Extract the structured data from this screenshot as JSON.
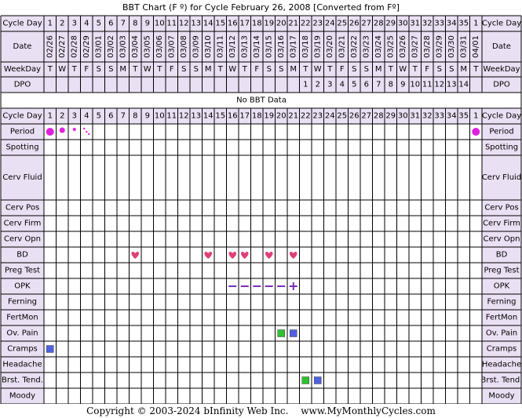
{
  "title": "BBT Chart (F º) for Cycle February 26, 2008  [Converted from Fº]",
  "no_bbt_text": "No BBT Data",
  "footer": {
    "copyright": "Copyright © 2003-2024 bInfinity Web Inc.",
    "site": "www.MyMonthlyCycles.com"
  },
  "colors": {
    "header_bg": "#EAE0F4",
    "grid_line": "#000000",
    "period": "#E020E0",
    "heart": "#E0407A",
    "opk_dash": "#7A2EB8",
    "green_marker": "#30C030",
    "blue_marker": "#5060E0"
  },
  "cycle_days": [
    "1",
    "2",
    "3",
    "4",
    "5",
    "6",
    "7",
    "8",
    "9",
    "10",
    "11",
    "12",
    "13",
    "14",
    "15",
    "16",
    "17",
    "18",
    "19",
    "20",
    "21",
    "22",
    "23",
    "24",
    "25",
    "26",
    "27",
    "28",
    "29",
    "30",
    "31",
    "32",
    "33",
    "34",
    "35",
    "1"
  ],
  "dates": [
    "02/26",
    "02/27",
    "02/28",
    "02/29",
    "03/01",
    "03/02",
    "03/03",
    "03/04",
    "03/05",
    "03/06",
    "03/07",
    "03/08",
    "03/09",
    "03/10",
    "03/11",
    "03/12",
    "03/13",
    "03/14",
    "03/15",
    "03/16",
    "03/17",
    "03/18",
    "03/19",
    "03/20",
    "03/21",
    "03/22",
    "03/23",
    "03/24",
    "03/25",
    "03/26",
    "03/27",
    "03/28",
    "03/29",
    "03/30",
    "03/31",
    "04/01"
  ],
  "weekdays": [
    "T",
    "W",
    "T",
    "F",
    "S",
    "S",
    "M",
    "T",
    "W",
    "T",
    "F",
    "S",
    "S",
    "M",
    "T",
    "W",
    "T",
    "F",
    "S",
    "S",
    "M",
    "T",
    "W",
    "T",
    "F",
    "S",
    "S",
    "M",
    "T",
    "W",
    "T",
    "F",
    "S",
    "S",
    "M",
    "T"
  ],
  "dpo": [
    "",
    "",
    "",
    "",
    "",
    "",
    "",
    "",
    "",
    "",
    "",
    "",
    "",
    "",
    "",
    "",
    "",
    "",
    "",
    "",
    "",
    "1",
    "2",
    "3",
    "4",
    "5",
    "6",
    "7",
    "8",
    "9",
    "10",
    "11",
    "12",
    "13",
    "14",
    ""
  ],
  "top_rows": [
    {
      "key": "cycle_day",
      "label": "Cycle Day"
    },
    {
      "key": "date",
      "label": "Date"
    },
    {
      "key": "weekday",
      "label": "WeekDay"
    },
    {
      "key": "dpo",
      "label": "DPO"
    }
  ],
  "bottom_rows": [
    {
      "key": "cycle_day",
      "label": "Cycle Day"
    },
    {
      "key": "period",
      "label": "Period"
    },
    {
      "key": "spotting",
      "label": "Spotting"
    },
    {
      "key": "cerv_fluid",
      "label": "Cerv Fluid"
    },
    {
      "key": "cerv_pos",
      "label": "Cerv Pos"
    },
    {
      "key": "cerv_firm",
      "label": "Cerv Firm"
    },
    {
      "key": "cerv_opn",
      "label": "Cerv Opn"
    },
    {
      "key": "bd",
      "label": "BD"
    },
    {
      "key": "preg_test",
      "label": "Preg Test"
    },
    {
      "key": "opk",
      "label": "OPK"
    },
    {
      "key": "ferning",
      "label": "Ferning"
    },
    {
      "key": "fertmon",
      "label": "FertMon"
    },
    {
      "key": "ov_pain",
      "label": "Ov. Pain"
    },
    {
      "key": "cramps",
      "label": "Cramps"
    },
    {
      "key": "headache",
      "label": "Headache"
    },
    {
      "key": "brst_tend",
      "label": "Brst. Tend."
    },
    {
      "key": "moody",
      "label": "Moody"
    }
  ],
  "markers": {
    "period": [
      {
        "day_index": 0,
        "kind": "heavy"
      },
      {
        "day_index": 1,
        "kind": "medium"
      },
      {
        "day_index": 2,
        "kind": "light"
      },
      {
        "day_index": 3,
        "kind": "spotting-dots"
      },
      {
        "day_index": 35,
        "kind": "heavy"
      }
    ],
    "bd": [
      7,
      13,
      15,
      16,
      18,
      20
    ],
    "opk": [
      {
        "day_index": 15,
        "result": "negative"
      },
      {
        "day_index": 16,
        "result": "negative"
      },
      {
        "day_index": 17,
        "result": "negative"
      },
      {
        "day_index": 18,
        "result": "negative"
      },
      {
        "day_index": 19,
        "result": "negative"
      },
      {
        "day_index": 20,
        "result": "positive"
      }
    ],
    "ov_pain": [
      {
        "day_index": 19,
        "color": "green"
      },
      {
        "day_index": 20,
        "color": "blue"
      }
    ],
    "cramps": [
      {
        "day_index": 0,
        "color": "blue"
      }
    ],
    "brst_tend": [
      {
        "day_index": 21,
        "color": "green"
      },
      {
        "day_index": 22,
        "color": "blue"
      }
    ]
  }
}
